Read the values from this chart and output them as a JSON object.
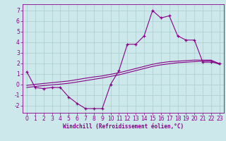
{
  "xlabel": "Windchill (Refroidissement éolien,°C)",
  "background_color": "#cce8ea",
  "grid_color": "#aacccc",
  "line_color": "#880088",
  "x_values": [
    0,
    1,
    2,
    3,
    4,
    5,
    6,
    7,
    8,
    9,
    10,
    11,
    12,
    13,
    14,
    15,
    16,
    17,
    18,
    19,
    20,
    21,
    22,
    23
  ],
  "y_main": [
    1.2,
    -0.3,
    -0.4,
    -0.3,
    -0.3,
    -1.2,
    -1.8,
    -2.3,
    -2.3,
    -2.3,
    0.0,
    1.3,
    3.8,
    3.8,
    4.6,
    7.0,
    6.3,
    6.5,
    4.6,
    4.2,
    4.2,
    2.1,
    2.1,
    2.0
  ],
  "y_line1": [
    -0.1,
    0.0,
    0.08,
    0.16,
    0.24,
    0.32,
    0.45,
    0.58,
    0.7,
    0.8,
    0.95,
    1.1,
    1.3,
    1.5,
    1.7,
    1.9,
    2.05,
    2.15,
    2.2,
    2.25,
    2.3,
    2.3,
    2.3,
    1.95
  ],
  "y_line2": [
    -0.3,
    -0.2,
    -0.12,
    -0.05,
    0.02,
    0.1,
    0.22,
    0.35,
    0.48,
    0.6,
    0.75,
    0.9,
    1.1,
    1.3,
    1.5,
    1.7,
    1.85,
    1.95,
    2.05,
    2.1,
    2.15,
    2.2,
    2.22,
    1.88
  ],
  "ylim": [
    -2.7,
    7.6
  ],
  "xlim": [
    -0.5,
    23.5
  ],
  "yticks": [
    -2,
    -1,
    0,
    1,
    2,
    3,
    4,
    5,
    6,
    7
  ],
  "xticks": [
    0,
    1,
    2,
    3,
    4,
    5,
    6,
    7,
    8,
    9,
    10,
    11,
    12,
    13,
    14,
    15,
    16,
    17,
    18,
    19,
    20,
    21,
    22,
    23
  ],
  "xlabel_fontsize": 5.5,
  "tick_fontsize": 5.5
}
